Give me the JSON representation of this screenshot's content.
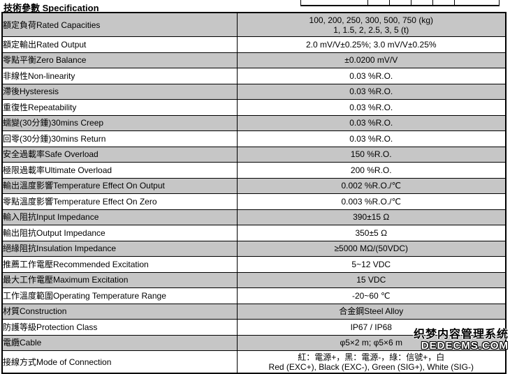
{
  "title": "技術參數 Specification",
  "colors": {
    "shaded_row": "#c6c6c6",
    "plain_row": "#ffffff",
    "border": "#000000",
    "text": "#000000"
  },
  "watermark": {
    "line1": "织梦内容管理系统",
    "line2": "DEDECMS.COM"
  },
  "table": {
    "columns": [
      "parameter",
      "value"
    ],
    "rows": [
      {
        "label": "額定負荷Rated Capacities",
        "value": "100, 200, 250, 300, 500, 750 (kg)",
        "value2": "1, 1.5, 2, 2.5, 3, 5 (t)",
        "shaded": true
      },
      {
        "label": "額定輸出Rated Output",
        "value": "2.0 mV/V±0.25%;  3.0 mV/V±0.25%",
        "shaded": false
      },
      {
        "label": "零點平衡Zero Balance",
        "value": "±0.0200 mV/V",
        "shaded": true
      },
      {
        "label": "非線性Non-linearity",
        "value": "0.03 %R.O.",
        "shaded": false
      },
      {
        "label": "滯後Hysteresis",
        "value": "0.03 %R.O.",
        "shaded": true
      },
      {
        "label": "重復性Repeatability",
        "value": "0.03 %R.O.",
        "shaded": false
      },
      {
        "label": "蠕變(30分鍾)30mins Creep",
        "value": "0.03 %R.O.",
        "shaded": true
      },
      {
        "label": "回零(30分鍾)30mins Return",
        "value": "0.03 %R.O.",
        "shaded": false
      },
      {
        "label": "安全過載率Safe Overload",
        "value": "150 %R.O.",
        "shaded": true
      },
      {
        "label": "極限過載率Ultimate Overload",
        "value": "200 %R.O.",
        "shaded": false
      },
      {
        "label": "輸出溫度影響Temperature Effect On Output",
        "value": "0.002 %R.O./℃",
        "shaded": true
      },
      {
        "label": "零點溫度影響Temperature Effect On Zero",
        "value": "0.003 %R.O./℃",
        "shaded": false
      },
      {
        "label": "輸入阻抗Input Impedance",
        "value": "390±15 Ω",
        "shaded": true
      },
      {
        "label": "輸出阻抗Output Impedance",
        "value": "350±5 Ω",
        "shaded": false
      },
      {
        "label": "絕緣阻抗Insulation Impedance",
        "value": "≥5000 MΩ/(50VDC)",
        "shaded": true
      },
      {
        "label": "推薦工作電壓Recommended Excitation",
        "value": "5~12 VDC",
        "shaded": false
      },
      {
        "label": "最大工作電壓Maximum Excitation",
        "value": "15 VDC",
        "shaded": true
      },
      {
        "label": "工作溫度範圍Operating Temperature Range",
        "value": "-20~60 ℃",
        "shaded": false
      },
      {
        "label": "材質Construction",
        "value": "合金鋼Steel Alloy",
        "shaded": true
      },
      {
        "label": "防護等級Protection Class",
        "value": "IP67 / IP68",
        "shaded": false
      },
      {
        "label": "電纜Cable",
        "value": "φ5×2 m;  φ5×6 m",
        "shaded": true
      },
      {
        "label": "接線方式Mode of Connection",
        "value": "紅：電源+，黑：電源-，綠：信號+，白",
        "value2": "Red (EXC+), Black (EXC-), Green (SIG+), White (SIG-)",
        "shaded": false
      }
    ]
  }
}
